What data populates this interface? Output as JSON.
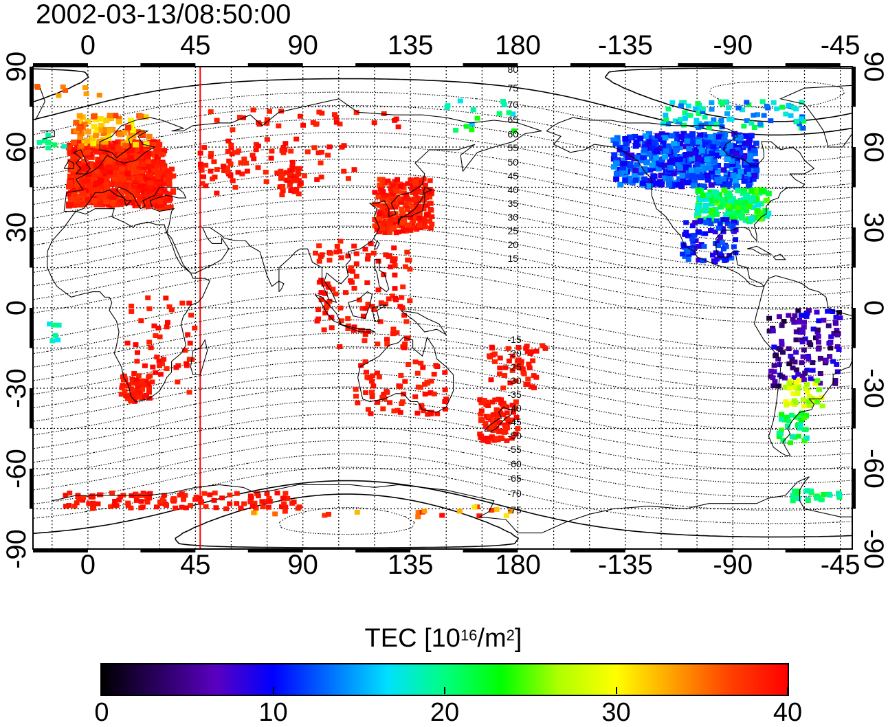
{
  "title": "2002-03-13/08:50:00",
  "map": {
    "projection": "equirectangular",
    "lon_range": [
      -23,
      320
    ],
    "lat_range": [
      -90,
      90
    ],
    "x_tick_labels": [
      "0",
      "45",
      "90",
      "135",
      "180",
      "-135",
      "-90",
      "-45"
    ],
    "y_tick_labels": [
      "90",
      "60",
      "30",
      "0",
      "-30",
      "-60",
      "-90"
    ],
    "terminator_line_lon": 47,
    "terminator_line_color": "#ff0000",
    "contour_labels_north": [
      "80",
      "75",
      "70",
      "65",
      "60",
      "55",
      "50",
      "45",
      "40",
      "35",
      "30",
      "25",
      "20",
      "15"
    ],
    "contour_labels_south": [
      "-15",
      "-20",
      "-25",
      "-30",
      "-35",
      "-40",
      "-45",
      "-50",
      "-55",
      "-60",
      "-65",
      "-70",
      "-75"
    ]
  },
  "colorbar": {
    "title_main": "TEC  [10",
    "title_sup1": "16",
    "title_mid": "/m",
    "title_sup2": "2",
    "title_end": "]",
    "min": 0,
    "max": 40,
    "tick_labels": [
      "0",
      "10",
      "20",
      "30",
      "40"
    ],
    "color_stops": [
      "#000000",
      "#2a0060",
      "#5a00c0",
      "#0000ff",
      "#0070ff",
      "#00e0ff",
      "#00ff80",
      "#00ff00",
      "#b0ff00",
      "#ffff00",
      "#ffa000",
      "#ff4000",
      "#ff0000"
    ]
  }
}
